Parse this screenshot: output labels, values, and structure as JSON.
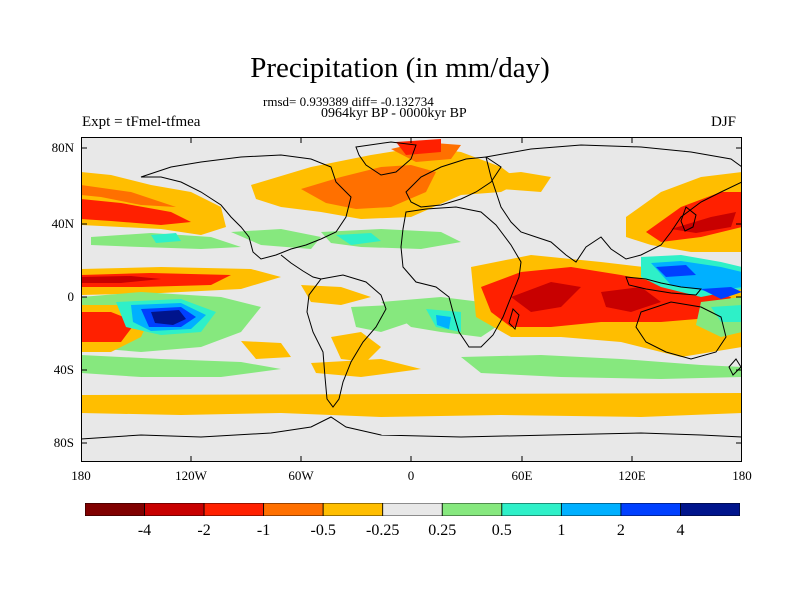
{
  "title": "Precipitation (in mm/day)",
  "stats": "rmsd= 0.939389 diff= -0.132734",
  "period": "0964kyr BP - 0000kyr BP",
  "experiment": "Expt = tFmel-tfmea",
  "season": "DJF",
  "lat_labels": [
    "80N",
    "40N",
    "0",
    "40S",
    "80S"
  ],
  "lon_labels": [
    "180",
    "120W",
    "60W",
    "0",
    "60E",
    "120E",
    "180"
  ],
  "colorbar": {
    "labels": [
      "-4",
      "-2",
      "-1",
      "-0.5",
      "-0.25",
      "0.25",
      "0.5",
      "1",
      "2",
      "4"
    ],
    "colors": [
      "#800000",
      "#c80000",
      "#ff2000",
      "#ff7000",
      "#ffbe00",
      "#e8e8e8",
      "#86e87e",
      "#2ef0c8",
      "#00b0ff",
      "#0040ff",
      "#00148c"
    ]
  },
  "colors": {
    "no_change": "#e8e8e8",
    "coastline": "#000000"
  }
}
